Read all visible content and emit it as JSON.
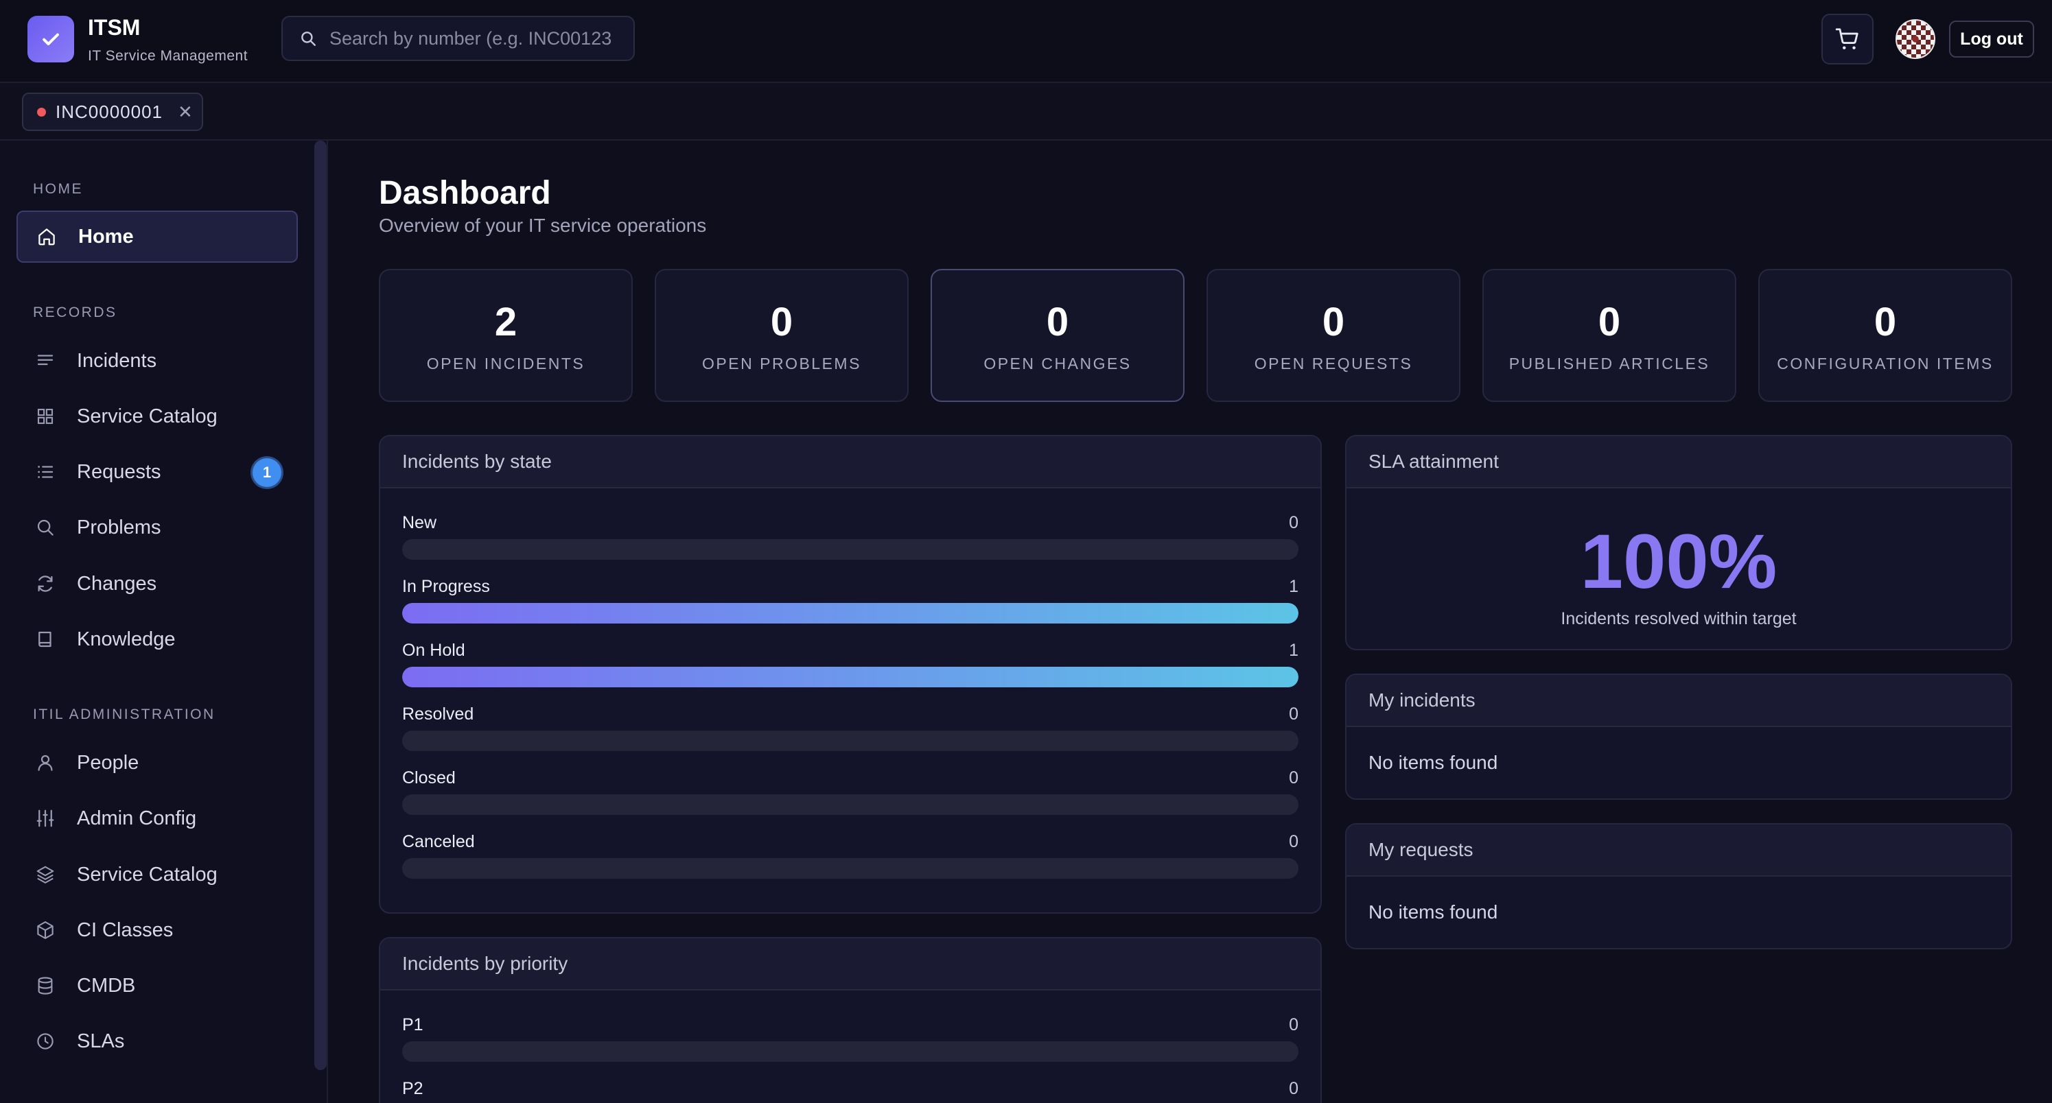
{
  "header": {
    "brand_title": "ITSM",
    "brand_subtitle": "IT Service Management",
    "search_placeholder": "Search by number (e.g. INC00123",
    "logout_label": "Log out",
    "icons": {
      "logo": "check-icon",
      "search": "search-icon",
      "cart": "cart-icon"
    }
  },
  "tabs": [
    {
      "label": "INC0000001",
      "status_color": "#ef5a5a"
    }
  ],
  "sidebar": {
    "sections": [
      {
        "label": "HOME",
        "items": [
          {
            "label": "Home",
            "icon": "home-icon",
            "active": true
          }
        ]
      },
      {
        "label": "RECORDS",
        "items": [
          {
            "label": "Incidents",
            "icon": "lines-icon"
          },
          {
            "label": "Service Catalog",
            "icon": "grid-icon"
          },
          {
            "label": "Requests",
            "icon": "list-icon",
            "badge": "1"
          },
          {
            "label": "Problems",
            "icon": "search-icon"
          },
          {
            "label": "Changes",
            "icon": "refresh-icon"
          },
          {
            "label": "Knowledge",
            "icon": "book-icon"
          }
        ]
      },
      {
        "label": "ITIL ADMINISTRATION",
        "items": [
          {
            "label": "People",
            "icon": "user-icon"
          },
          {
            "label": "Admin Config",
            "icon": "sliders-icon"
          },
          {
            "label": "Service Catalog",
            "icon": "layers-icon"
          },
          {
            "label": "CI Classes",
            "icon": "cube-icon"
          },
          {
            "label": "CMDB",
            "icon": "database-icon"
          },
          {
            "label": "SLAs",
            "icon": "clock-icon"
          }
        ]
      }
    ]
  },
  "main": {
    "title": "Dashboard",
    "subtitle": "Overview of your IT service operations",
    "stats": [
      {
        "value": "2",
        "label": "OPEN INCIDENTS"
      },
      {
        "value": "0",
        "label": "OPEN PROBLEMS"
      },
      {
        "value": "0",
        "label": "OPEN CHANGES"
      },
      {
        "value": "0",
        "label": "OPEN REQUESTS"
      },
      {
        "value": "0",
        "label": "PUBLISHED ARTICLES"
      },
      {
        "value": "0",
        "label": "CONFIGURATION ITEMS"
      }
    ],
    "incidents_by_state": {
      "title": "Incidents by state",
      "rows": [
        {
          "label": "New",
          "count": "0",
          "fill": 0
        },
        {
          "label": "In Progress",
          "count": "1",
          "fill": 1
        },
        {
          "label": "On Hold",
          "count": "1",
          "fill": 1
        },
        {
          "label": "Resolved",
          "count": "0",
          "fill": 0
        },
        {
          "label": "Closed",
          "count": "0",
          "fill": 0
        },
        {
          "label": "Canceled",
          "count": "0",
          "fill": 0
        }
      ]
    },
    "incidents_by_priority": {
      "title": "Incidents by priority",
      "rows": [
        {
          "label": "P1",
          "count": "0",
          "fill": 0
        },
        {
          "label": "P2",
          "count": "0",
          "fill": 0
        }
      ]
    },
    "sla": {
      "title": "SLA attainment",
      "value": "100%",
      "caption": "Incidents resolved within target"
    },
    "my_incidents": {
      "title": "My incidents",
      "empty_text": "No items found"
    },
    "my_requests": {
      "title": "My requests",
      "empty_text": "No items found"
    }
  }
}
